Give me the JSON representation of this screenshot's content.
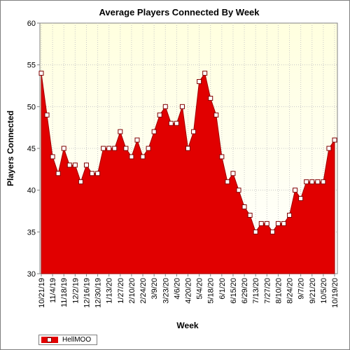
{
  "chart_data": {
    "type": "area",
    "title": "Average Players Connected By Week",
    "xlabel": "Week",
    "ylabel": "Players Connected",
    "ylim": [
      30,
      60
    ],
    "yticks": [
      30,
      35,
      40,
      45,
      50,
      55,
      60
    ],
    "x_tick_labels": [
      "10/21/19",
      "11/4/19",
      "11/18/19",
      "12/2/19",
      "12/16/19",
      "12/30/19",
      "1/13/20",
      "1/27/20",
      "2/10/20",
      "2/24/20",
      "3/9/20",
      "3/23/20",
      "4/6/20",
      "4/20/20",
      "5/4/20",
      "5/18/20",
      "6/1/20",
      "6/15/20",
      "6/29/20",
      "7/13/20",
      "7/27/20",
      "8/10/20",
      "8/24/20",
      "9/7/20",
      "9/21/20",
      "10/5/20",
      "10/19/20"
    ],
    "x": [
      "10/21/19",
      "10/28/19",
      "11/4/19",
      "11/11/19",
      "11/18/19",
      "11/25/19",
      "12/2/19",
      "12/9/19",
      "12/16/19",
      "12/23/19",
      "12/30/19",
      "1/6/20",
      "1/13/20",
      "1/20/20",
      "1/27/20",
      "2/3/20",
      "2/10/20",
      "2/17/20",
      "2/24/20",
      "3/2/20",
      "3/9/20",
      "3/16/20",
      "3/23/20",
      "3/30/20",
      "4/6/20",
      "4/13/20",
      "4/20/20",
      "4/27/20",
      "5/4/20",
      "5/11/20",
      "5/18/20",
      "5/25/20",
      "6/1/20",
      "6/8/20",
      "6/15/20",
      "6/22/20",
      "6/29/20",
      "7/6/20",
      "7/13/20",
      "7/20/20",
      "7/27/20",
      "8/3/20",
      "8/10/20",
      "8/17/20",
      "8/24/20",
      "8/31/20",
      "9/7/20",
      "9/14/20",
      "9/21/20",
      "9/28/20",
      "10/5/20",
      "10/12/20",
      "10/19/20"
    ],
    "series": [
      {
        "name": "HellMOO",
        "color": "#e10000",
        "values": [
          54,
          49,
          44,
          42,
          45,
          43,
          43,
          41,
          43,
          42,
          42,
          45,
          45,
          45,
          47,
          45,
          44,
          46,
          44,
          45,
          47,
          49,
          50,
          48,
          48,
          50,
          45,
          47,
          53,
          54,
          51,
          49,
          44,
          41,
          42,
          40,
          38,
          37,
          35,
          36,
          36,
          35,
          36,
          36,
          37,
          40,
          39,
          41,
          41,
          41,
          41,
          45,
          46
        ]
      }
    ],
    "grid": true,
    "legend_position": "bottom-left",
    "plot_background": "#ffffe6"
  }
}
